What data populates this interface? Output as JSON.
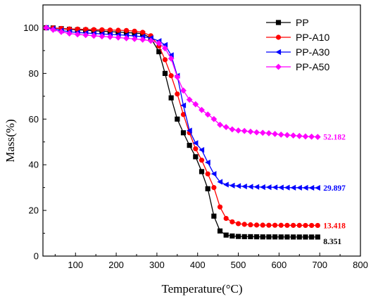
{
  "chart_data": {
    "type": "line",
    "xlabel": "Temperature(°C)",
    "ylabel": "Mass(%)",
    "xlim": [
      20,
      800
    ],
    "ylim": [
      0,
      110
    ],
    "xticks": [
      100,
      200,
      300,
      400,
      500,
      600,
      700,
      800
    ],
    "yticks": [
      0,
      20,
      40,
      60,
      80,
      100
    ],
    "grid": false,
    "legend_position": "top-right",
    "series": [
      {
        "name": "PP",
        "color": "#000000",
        "marker": "square",
        "end_label": "8.351",
        "x": [
          28,
          45,
          65,
          85,
          105,
          125,
          145,
          165,
          185,
          205,
          225,
          245,
          265,
          285,
          305,
          320,
          335,
          350,
          365,
          380,
          395,
          410,
          425,
          440,
          455,
          470,
          485,
          500,
          515,
          530,
          545,
          560,
          575,
          590,
          605,
          620,
          635,
          650,
          665,
          680,
          695
        ],
        "y": [
          100,
          99.9,
          99.6,
          99.3,
          99.1,
          98.9,
          98.7,
          98.5,
          98.3,
          98.1,
          97.9,
          97.7,
          97.4,
          95.5,
          89.5,
          80,
          69.3,
          60,
          54,
          48.5,
          43.5,
          37,
          29.5,
          17.5,
          11,
          9.2,
          8.8,
          8.6,
          8.5,
          8.5,
          8.45,
          8.4,
          8.4,
          8.4,
          8.38,
          8.37,
          8.36,
          8.36,
          8.355,
          8.353,
          8.351
        ]
      },
      {
        "name": "PP-A10",
        "color": "#ff0000",
        "marker": "circle",
        "end_label": "13.418",
        "x": [
          28,
          45,
          65,
          85,
          105,
          125,
          145,
          165,
          185,
          205,
          225,
          245,
          265,
          285,
          305,
          320,
          335,
          350,
          365,
          380,
          395,
          410,
          425,
          440,
          455,
          470,
          485,
          500,
          515,
          530,
          545,
          560,
          575,
          590,
          605,
          620,
          635,
          650,
          665,
          680,
          695
        ],
        "y": [
          100,
          99.9,
          99.7,
          99.5,
          99.4,
          99.3,
          99.2,
          99.1,
          99,
          98.9,
          98.8,
          98.5,
          98,
          96.5,
          92,
          86,
          79,
          71,
          62,
          54,
          47,
          42,
          36,
          30,
          21.5,
          16.5,
          15,
          14.2,
          13.9,
          13.7,
          13.6,
          13.55,
          13.5,
          13.5,
          13.48,
          13.46,
          13.45,
          13.44,
          13.43,
          13.42,
          13.418
        ]
      },
      {
        "name": "PP-A30",
        "color": "#0000ff",
        "marker": "triangle-left",
        "end_label": "29.897",
        "x": [
          28,
          45,
          65,
          85,
          105,
          125,
          145,
          165,
          185,
          205,
          225,
          245,
          265,
          285,
          305,
          320,
          335,
          350,
          365,
          380,
          395,
          410,
          425,
          440,
          455,
          470,
          485,
          500,
          515,
          530,
          545,
          560,
          575,
          590,
          605,
          620,
          635,
          650,
          665,
          680,
          695
        ],
        "y": [
          100,
          99.6,
          98.8,
          98.3,
          97.9,
          97.7,
          97.5,
          97.3,
          97.1,
          96.9,
          96.7,
          96.4,
          96.1,
          95.5,
          94.2,
          92.5,
          88,
          79,
          66,
          55,
          49.5,
          46.5,
          41,
          36,
          32.5,
          31.3,
          30.9,
          30.7,
          30.5,
          30.4,
          30.3,
          30.2,
          30.15,
          30.1,
          30.05,
          30,
          29.97,
          29.95,
          29.92,
          29.9,
          29.897
        ]
      },
      {
        "name": "PP-A50",
        "color": "#ff00ff",
        "marker": "diamond",
        "end_label": "52.182",
        "x": [
          28,
          45,
          65,
          85,
          105,
          125,
          145,
          165,
          185,
          205,
          225,
          245,
          265,
          285,
          305,
          320,
          335,
          350,
          365,
          380,
          395,
          410,
          425,
          440,
          455,
          470,
          485,
          500,
          515,
          530,
          545,
          560,
          575,
          590,
          605,
          620,
          635,
          650,
          665,
          680,
          695
        ],
        "y": [
          100,
          99.1,
          98.2,
          97.5,
          97.1,
          96.8,
          96.5,
          96.2,
          96,
          95.7,
          95.4,
          95.1,
          94.8,
          94.3,
          93.2,
          91,
          86.5,
          78.5,
          72.5,
          68.5,
          66.5,
          64,
          62,
          60,
          57.5,
          56.5,
          55.5,
          55,
          54.8,
          54.5,
          54.2,
          54,
          53.8,
          53.5,
          53.2,
          53,
          52.8,
          52.6,
          52.4,
          52.3,
          52.182
        ]
      }
    ]
  }
}
